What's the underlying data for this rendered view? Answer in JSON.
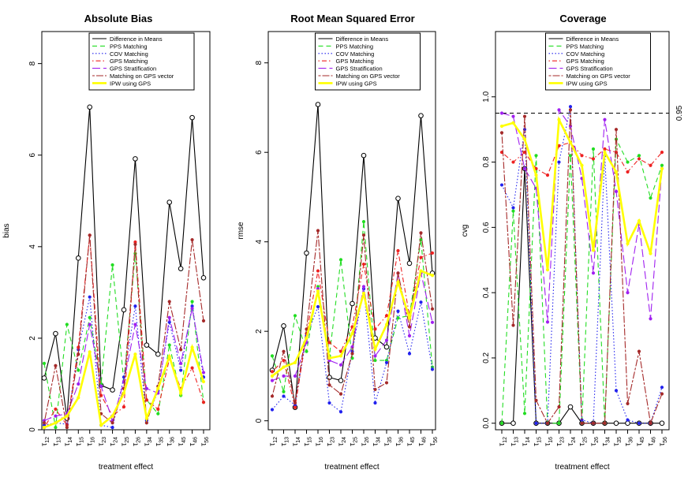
{
  "figure": {
    "x_label": "treatment effect"
  },
  "legend_entries": [
    {
      "name": "Difference in Means",
      "color": "#000000",
      "dash": "solid"
    },
    {
      "name": "PPS Matching",
      "color": "#22dd22",
      "dash": "dashed"
    },
    {
      "name": "COV Matching",
      "color": "#2222ee",
      "dash": "dotted"
    },
    {
      "name": "GPS Matching",
      "color": "#ee2222",
      "dash": "dotdash"
    },
    {
      "name": "GPS Stratification",
      "color": "#a020f0",
      "dash": "longdash"
    },
    {
      "name": "Matching on GPS vector",
      "color": "#a52a2a",
      "dash": "twodash"
    },
    {
      "name": "IPW using GPS",
      "color": "#ffff00",
      "dash": "solid-thick"
    }
  ],
  "categories": [
    {
      "base": "τ",
      "sub": "12"
    },
    {
      "base": "τ",
      "sub": "13"
    },
    {
      "base": "τ",
      "sub": "14"
    },
    {
      "base": "τ",
      "sub": "15"
    },
    {
      "base": "τ",
      "sub": "16"
    },
    {
      "base": "τ",
      "sub": "23"
    },
    {
      "base": "τ",
      "sub": "24"
    },
    {
      "base": "τ",
      "sub": "25"
    },
    {
      "base": "τ",
      "sub": "26"
    },
    {
      "base": "τ",
      "sub": "34"
    },
    {
      "base": "τ",
      "sub": "35"
    },
    {
      "base": "τ",
      "sub": "36"
    },
    {
      "base": "τ",
      "sub": "45"
    },
    {
      "base": "τ",
      "sub": "46"
    },
    {
      "base": "τ",
      "sub": "56"
    }
  ],
  "chart_data": [
    {
      "type": "line",
      "title": "Absolute Bias",
      "xlabel": "treatment effect",
      "ylabel": "bias",
      "ylim": [
        0,
        8.7
      ],
      "yticks": [
        0,
        2,
        4,
        6,
        8
      ],
      "grid": false,
      "legend": "top-center",
      "series": [
        {
          "name": "Difference in Means",
          "values": [
            1.13,
            2.1,
            0.25,
            3.75,
            7.05,
            0.97,
            0.87,
            2.62,
            5.92,
            1.85,
            1.65,
            4.97,
            3.52,
            6.82,
            3.32
          ]
        },
        {
          "name": "PPS Matching",
          "values": [
            1.45,
            0.05,
            2.3,
            1.3,
            2.45,
            1.0,
            3.6,
            1.05,
            3.85,
            0.65,
            0.35,
            1.85,
            0.75,
            2.8,
            0.6
          ]
        },
        {
          "name": "COV Matching",
          "values": [
            0.1,
            0.15,
            0.12,
            1.75,
            2.9,
            0.1,
            0.05,
            1.15,
            2.7,
            0.2,
            0.85,
            2.35,
            1.3,
            2.7,
            1.15
          ]
        },
        {
          "name": "GPS Matching",
          "values": [
            0.05,
            0.45,
            0.1,
            1.8,
            4.25,
            0.75,
            0.3,
            0.5,
            4.1,
            0.65,
            0.45,
            1.55,
            0.9,
            1.35,
            0.6
          ]
        },
        {
          "name": "GPS Stratification",
          "values": [
            0.2,
            0.3,
            0.35,
            1.0,
            2.3,
            0.95,
            0.2,
            1.05,
            2.3,
            0.9,
            0.8,
            2.45,
            1.45,
            2.65,
            1.25
          ]
        },
        {
          "name": "Matching on GPS vector",
          "values": [
            0.15,
            1.4,
            0.05,
            1.65,
            4.25,
            0.35,
            0.15,
            0.9,
            4.05,
            0.15,
            0.95,
            2.8,
            1.75,
            4.15,
            2.38
          ]
        },
        {
          "name": "IPW using GPS",
          "values": [
            0.05,
            0.15,
            0.3,
            0.7,
            1.7,
            0.1,
            0.3,
            0.8,
            1.65,
            0.25,
            0.9,
            1.6,
            0.8,
            1.8,
            1.05
          ]
        }
      ]
    },
    {
      "type": "line",
      "title": "Root Mean Squared Error",
      "xlabel": "treatment effect",
      "ylabel": "rmse",
      "ylim": [
        -0.2,
        8.7
      ],
      "yticks": [
        0,
        2,
        4,
        6,
        8
      ],
      "grid": false,
      "legend": "top-center",
      "series": [
        {
          "name": "Difference in Means",
          "values": [
            1.13,
            2.12,
            0.3,
            3.75,
            7.07,
            0.97,
            0.9,
            2.62,
            5.93,
            1.85,
            1.65,
            4.97,
            3.52,
            6.82,
            3.3
          ]
        },
        {
          "name": "PPS Matching",
          "values": [
            1.45,
            0.65,
            2.35,
            1.55,
            3.0,
            1.45,
            3.6,
            1.4,
            4.45,
            1.35,
            1.35,
            2.3,
            2.35,
            4.05,
            1.2
          ]
        },
        {
          "name": "COV Matching",
          "values": [
            0.25,
            0.55,
            0.35,
            1.9,
            2.55,
            0.4,
            0.2,
            1.55,
            2.95,
            0.4,
            1.3,
            2.45,
            1.5,
            2.65,
            1.15
          ]
        },
        {
          "name": "GPS Matching",
          "values": [
            1.1,
            1.35,
            0.3,
            1.95,
            3.35,
            1.75,
            1.55,
            2.1,
            3.5,
            2.05,
            2.35,
            3.8,
            2.35,
            3.65,
            3.75
          ]
        },
        {
          "name": "GPS Stratification",
          "values": [
            0.9,
            1.0,
            1.0,
            1.75,
            2.95,
            1.35,
            1.25,
            1.65,
            3.0,
            1.45,
            1.8,
            3.3,
            1.9,
            3.3,
            2.2
          ]
        },
        {
          "name": "Matching on GPS vector",
          "values": [
            0.55,
            1.55,
            0.4,
            2.05,
            4.25,
            0.8,
            0.6,
            1.5,
            4.15,
            0.7,
            0.85,
            3.3,
            2.1,
            4.2,
            2.5
          ]
        },
        {
          "name": "IPW using GPS",
          "values": [
            1.0,
            1.2,
            1.3,
            1.85,
            2.9,
            1.4,
            1.45,
            1.95,
            2.85,
            1.6,
            2.15,
            3.1,
            2.3,
            3.35,
            3.25
          ]
        }
      ]
    },
    {
      "type": "line",
      "title": "Coverage",
      "xlabel": "treatment effect",
      "ylabel": "cvg",
      "ylim": [
        -0.02,
        1.2
      ],
      "yticks": [
        0.0,
        0.2,
        0.4,
        0.6,
        0.8,
        1.0
      ],
      "ytick_labels": [
        "0.0",
        "0.2",
        "0.4",
        "0.6",
        "0.8",
        "1.0"
      ],
      "reference_line": {
        "value": 0.95,
        "label": "0.95"
      },
      "grid": false,
      "legend": "top-center",
      "series": [
        {
          "name": "Difference in Means",
          "values": [
            0.0,
            0.0,
            0.78,
            0.0,
            0.0,
            0.0,
            0.05,
            0.0,
            0.0,
            0.0,
            0.0,
            0.0,
            0.0,
            0.0,
            0.0
          ]
        },
        {
          "name": "PPS Matching",
          "values": [
            0.0,
            0.65,
            0.03,
            0.82,
            0.0,
            0.0,
            0.82,
            0.0,
            0.84,
            0.0,
            0.87,
            0.8,
            0.82,
            0.69,
            0.79
          ]
        },
        {
          "name": "COV Matching",
          "values": [
            0.73,
            0.66,
            0.9,
            0.0,
            0.0,
            0.8,
            0.97,
            0.01,
            0.0,
            0.82,
            0.1,
            0.01,
            0.0,
            0.0,
            0.11
          ]
        },
        {
          "name": "GPS Matching",
          "values": [
            0.83,
            0.8,
            0.83,
            0.78,
            0.76,
            0.85,
            0.86,
            0.82,
            0.81,
            0.84,
            0.83,
            0.77,
            0.81,
            0.79,
            0.83
          ]
        },
        {
          "name": "GPS Stratification",
          "values": [
            0.95,
            0.94,
            0.78,
            0.72,
            0.31,
            0.96,
            0.91,
            0.75,
            0.46,
            0.93,
            0.71,
            0.4,
            0.61,
            0.32,
            0.78
          ]
        },
        {
          "name": "Matching on GPS vector",
          "values": [
            0.89,
            0.3,
            0.94,
            0.07,
            0.0,
            0.05,
            0.96,
            0.0,
            0.0,
            0.0,
            0.9,
            0.06,
            0.22,
            0.0,
            0.09
          ]
        },
        {
          "name": "IPW using GPS",
          "values": [
            0.91,
            0.92,
            0.87,
            0.76,
            0.47,
            0.93,
            0.86,
            0.79,
            0.53,
            0.83,
            0.77,
            0.55,
            0.62,
            0.52,
            0.78
          ]
        }
      ]
    }
  ]
}
